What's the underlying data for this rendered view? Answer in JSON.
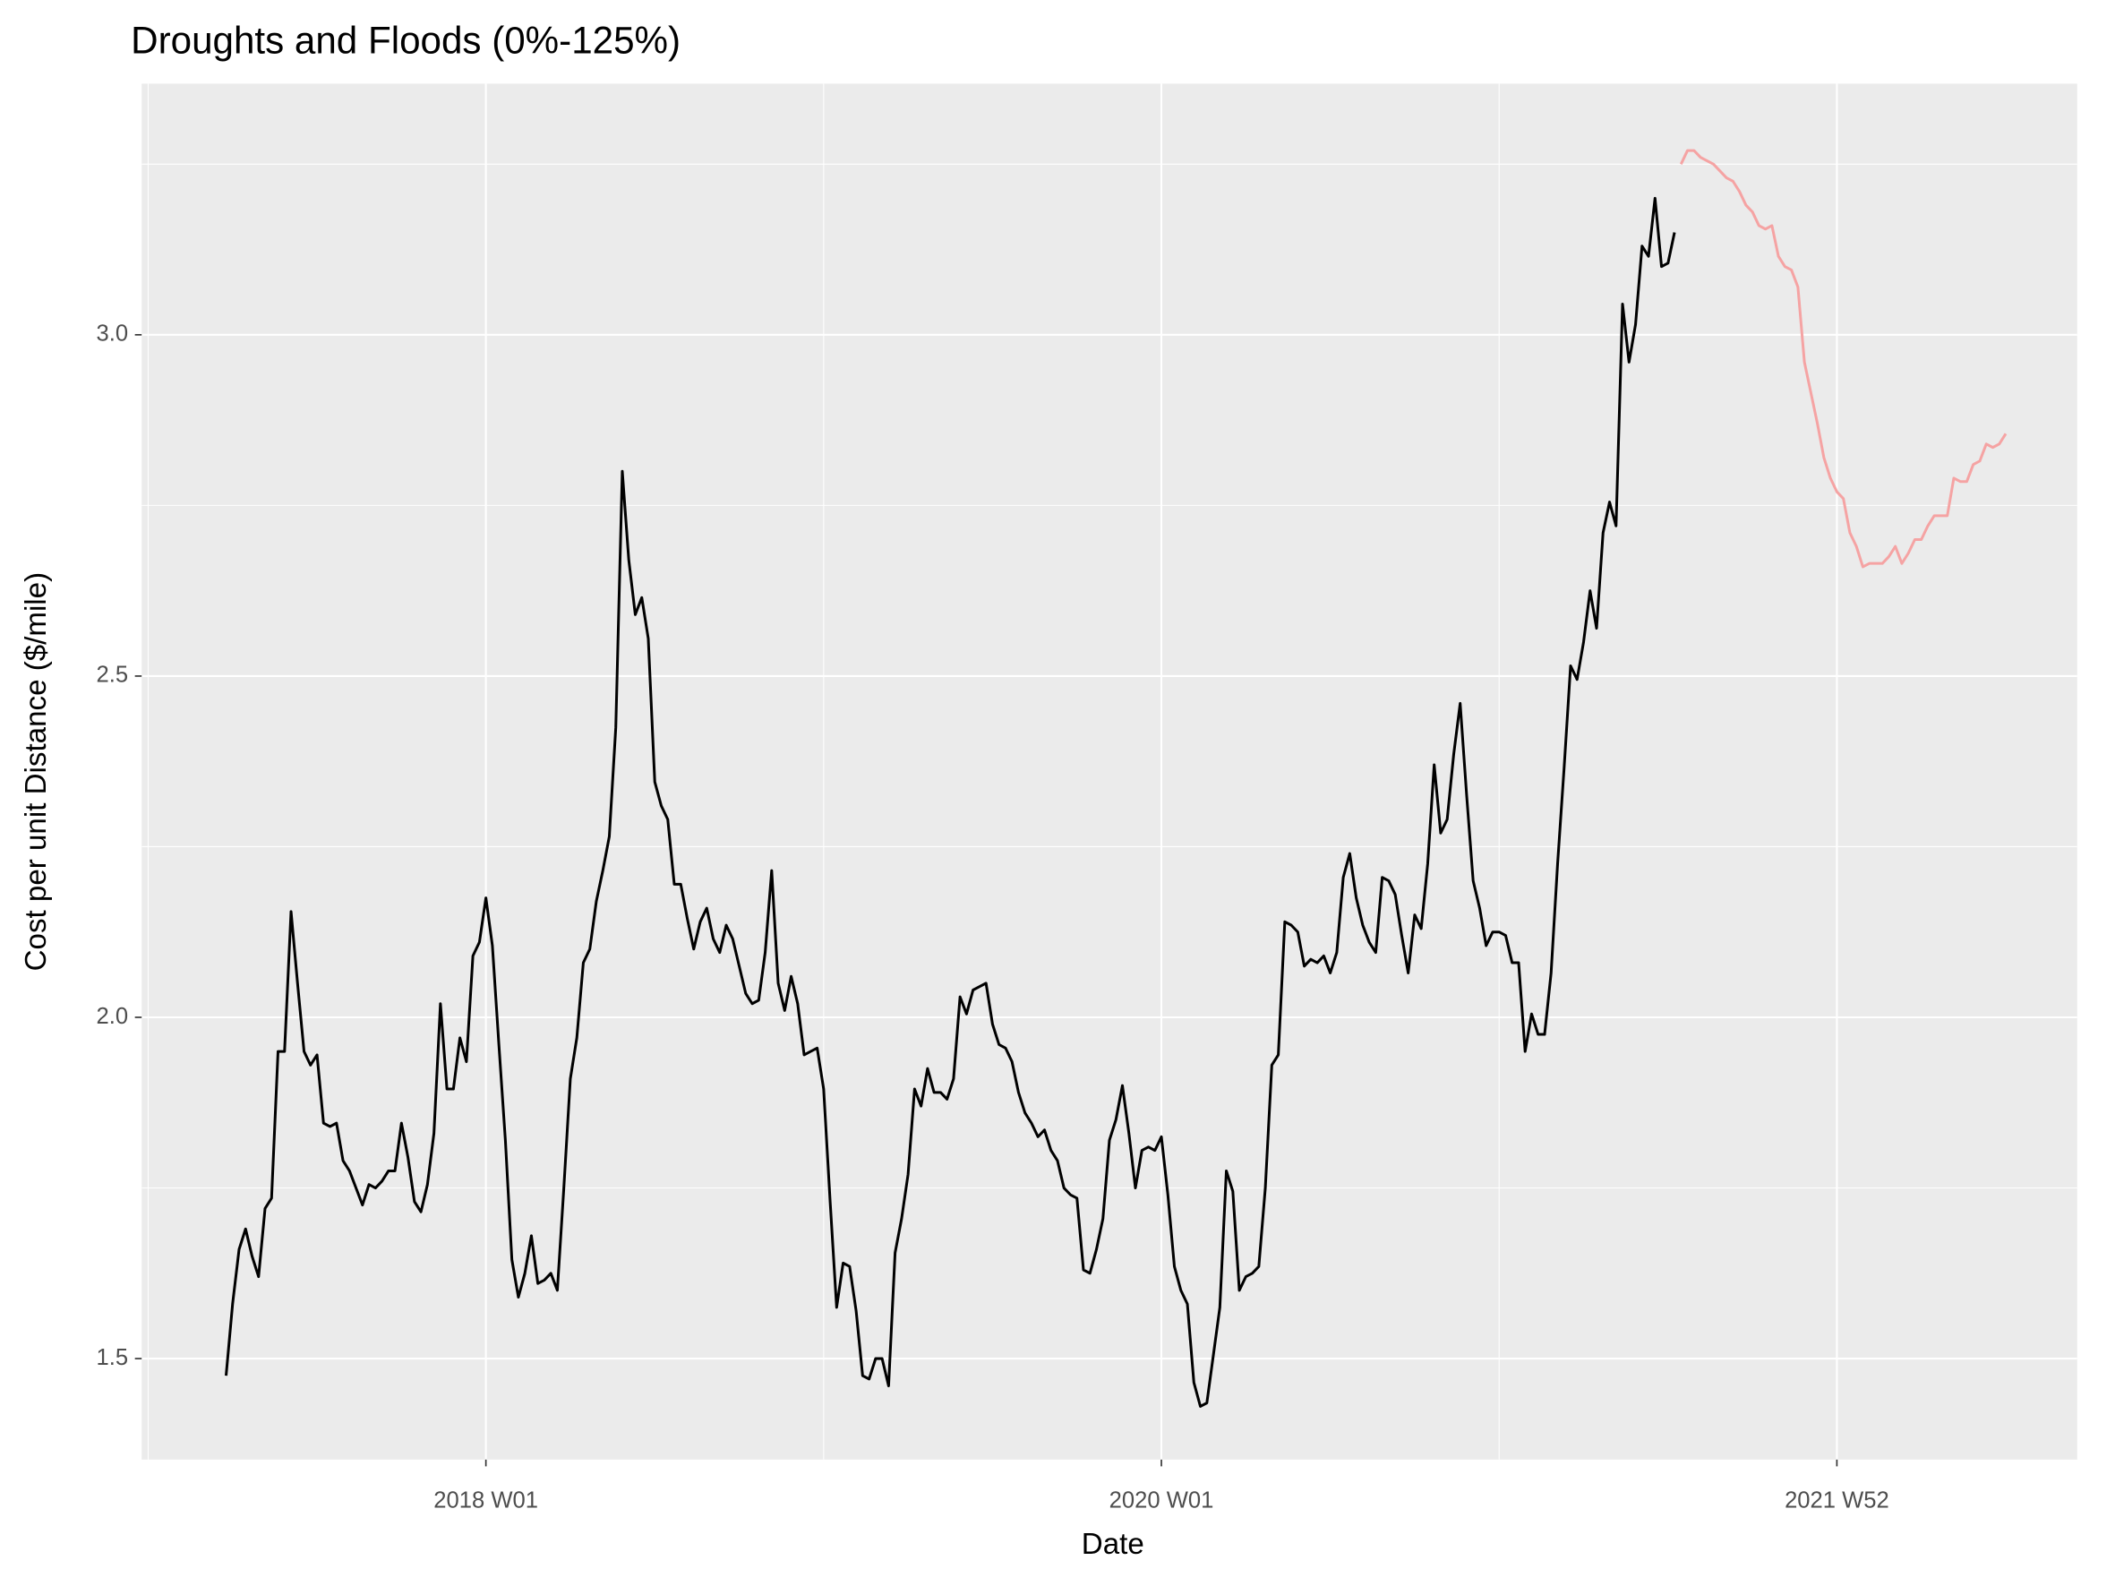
{
  "chart_data": {
    "type": "line",
    "title": "Droughts and Floods (0%-125%)",
    "x_label": "Date",
    "y_label": "Cost per unit Distance ($/mile)",
    "grid": true,
    "xlim": [
      "2016 W52",
      "2022 W37"
    ],
    "xticks": [
      "2018 W01",
      "2020 W01",
      "2021 W52"
    ],
    "ylim": [
      1.352,
      3.368
    ],
    "yticks": [
      1.5,
      {
        "value": 2,
        "label": "2.0"
      },
      2.5,
      {
        "value": 3,
        "label": "3.0"
      }
    ],
    "series": [
      {
        "color": "#000000",
        "x": [
          "2017 W13",
          "2017 W14",
          "2017 W15",
          "2017 W16",
          "2017 W17",
          "2017 W18",
          "2017 W19",
          "2017 W20",
          "2017 W21",
          "2017 W22",
          "2017 W23",
          "2017 W24",
          "2017 W25",
          "2017 W26",
          "2017 W27",
          "2017 W28",
          "2017 W29",
          "2017 W30",
          "2017 W31",
          "2017 W32",
          "2017 W33",
          "2017 W34",
          "2017 W35",
          "2017 W36",
          "2017 W37",
          "2017 W38",
          "2017 W39",
          "2017 W40",
          "2017 W41",
          "2017 W42",
          "2017 W43",
          "2017 W44",
          "2017 W45",
          "2017 W46",
          "2017 W47",
          "2017 W48",
          "2017 W49",
          "2017 W50",
          "2017 W51",
          "2017 W52",
          "2018 W01",
          "2018 W02",
          "2018 W03",
          "2018 W04",
          "2018 W05",
          "2018 W06",
          "2018 W07",
          "2018 W08",
          "2018 W09",
          "2018 W10",
          "2018 W11",
          "2018 W12",
          "2018 W13",
          "2018 W14",
          "2018 W15",
          "2018 W16",
          "2018 W17",
          "2018 W18",
          "2018 W19",
          "2018 W20",
          "2018 W21",
          "2018 W22",
          "2018 W23",
          "2018 W24",
          "2018 W25",
          "2018 W26",
          "2018 W27",
          "2018 W28",
          "2018 W29",
          "2018 W30",
          "2018 W31",
          "2018 W32",
          "2018 W33",
          "2018 W34",
          "2018 W35",
          "2018 W36",
          "2018 W37",
          "2018 W38",
          "2018 W39",
          "2018 W40",
          "2018 W41",
          "2018 W42",
          "2018 W43",
          "2018 W44",
          "2018 W45",
          "2018 W46",
          "2018 W47",
          "2018 W48",
          "2018 W49",
          "2018 W50",
          "2018 W51",
          "2018 W52",
          "2019 W01",
          "2019 W02",
          "2019 W03",
          "2019 W04",
          "2019 W05",
          "2019 W06",
          "2019 W07",
          "2019 W08",
          "2019 W09",
          "2019 W10",
          "2019 W11",
          "2019 W12",
          "2019 W13",
          "2019 W14",
          "2019 W15",
          "2019 W16",
          "2019 W17",
          "2019 W18",
          "2019 W19",
          "2019 W20",
          "2019 W21",
          "2019 W22",
          "2019 W23",
          "2019 W24",
          "2019 W25",
          "2019 W26",
          "2019 W27",
          "2019 W28",
          "2019 W29",
          "2019 W30",
          "2019 W31",
          "2019 W32",
          "2019 W33",
          "2019 W34",
          "2019 W35",
          "2019 W36",
          "2019 W37",
          "2019 W38",
          "2019 W39",
          "2019 W40",
          "2019 W41",
          "2019 W42",
          "2019 W43",
          "2019 W44",
          "2019 W45",
          "2019 W46",
          "2019 W47",
          "2019 W48",
          "2019 W49",
          "2019 W50",
          "2019 W51",
          "2019 W52",
          "2020 W01",
          "2020 W02",
          "2020 W03",
          "2020 W04",
          "2020 W05",
          "2020 W06",
          "2020 W07",
          "2020 W08",
          "2020 W09",
          "2020 W10",
          "2020 W11",
          "2020 W12",
          "2020 W13",
          "2020 W14",
          "2020 W15",
          "2020 W16",
          "2020 W17",
          "2020 W18",
          "2020 W19",
          "2020 W20",
          "2020 W21",
          "2020 W22",
          "2020 W23",
          "2020 W24",
          "2020 W25",
          "2020 W26",
          "2020 W27",
          "2020 W28",
          "2020 W29",
          "2020 W30",
          "2020 W31",
          "2020 W32",
          "2020 W33",
          "2020 W34",
          "2020 W35",
          "2020 W36",
          "2020 W37",
          "2020 W38",
          "2020 W39",
          "2020 W40",
          "2020 W41",
          "2020 W42",
          "2020 W43",
          "2020 W44",
          "2020 W45",
          "2020 W46",
          "2020 W47",
          "2020 W48",
          "2020 W49",
          "2020 W50",
          "2020 W51",
          "2020 W52",
          "2020 W53",
          "2021 W01",
          "2021 W02",
          "2021 W03",
          "2021 W04",
          "2021 W05",
          "2021 W06",
          "2021 W07",
          "2021 W08",
          "2021 W09",
          "2021 W10",
          "2021 W11",
          "2021 W12",
          "2021 W13",
          "2021 W14",
          "2021 W15",
          "2021 W16",
          "2021 W17",
          "2021 W18",
          "2021 W19",
          "2021 W20",
          "2021 W21",
          "2021 W22",
          "2021 W23",
          "2021 W24",
          "2021 W25",
          "2021 W26",
          "2021 W27"
        ],
        "values": [
          1.475,
          1.58,
          1.66,
          1.69,
          1.65,
          1.62,
          1.72,
          1.735,
          1.95,
          1.95,
          2.155,
          2.05,
          1.95,
          1.93,
          1.945,
          1.845,
          1.84,
          1.845,
          1.79,
          1.775,
          1.75,
          1.725,
          1.755,
          1.75,
          1.76,
          1.775,
          1.775,
          1.845,
          1.795,
          1.73,
          1.715,
          1.755,
          1.83,
          2.02,
          1.895,
          1.895,
          1.97,
          1.935,
          2.09,
          2.11,
          2.175,
          2.105,
          1.96,
          1.82,
          1.645,
          1.59,
          1.625,
          1.68,
          1.61,
          1.615,
          1.625,
          1.6,
          1.75,
          1.91,
          1.97,
          2.08,
          2.1,
          2.17,
          2.215,
          2.265,
          2.425,
          2.8,
          2.67,
          2.59,
          2.615,
          2.555,
          2.345,
          2.31,
          2.29,
          2.195,
          2.195,
          2.145,
          2.1,
          2.14,
          2.16,
          2.115,
          2.095,
          2.135,
          2.115,
          2.075,
          2.035,
          2.02,
          2.025,
          2.095,
          2.215,
          2.05,
          2.01,
          2.06,
          2.02,
          1.945,
          1.95,
          1.955,
          1.895,
          1.73,
          1.575,
          1.64,
          1.635,
          1.57,
          1.475,
          1.47,
          1.5,
          1.5,
          1.46,
          1.655,
          1.705,
          1.77,
          1.895,
          1.87,
          1.925,
          1.89,
          1.89,
          1.88,
          1.91,
          2.03,
          2.005,
          2.04,
          2.045,
          2.05,
          1.99,
          1.96,
          1.955,
          1.935,
          1.89,
          1.86,
          1.845,
          1.825,
          1.835,
          1.805,
          1.79,
          1.75,
          1.74,
          1.735,
          1.63,
          1.625,
          1.66,
          1.705,
          1.82,
          1.85,
          1.9,
          1.83,
          1.75,
          1.805,
          1.81,
          1.805,
          1.825,
          1.74,
          1.635,
          1.6,
          1.58,
          1.465,
          1.43,
          1.435,
          1.505,
          1.575,
          1.775,
          1.745,
          1.6,
          1.62,
          1.625,
          1.635,
          1.75,
          1.93,
          1.945,
          2.14,
          2.135,
          2.125,
          2.075,
          2.085,
          2.08,
          2.09,
          2.065,
          2.095,
          2.205,
          2.24,
          2.175,
          2.135,
          2.11,
          2.095,
          2.205,
          2.2,
          2.18,
          2.12,
          2.065,
          2.15,
          2.13,
          2.225,
          2.37,
          2.27,
          2.29,
          2.385,
          2.46,
          2.325,
          2.2,
          2.16,
          2.105,
          2.125,
          2.125,
          2.12,
          2.08,
          2.08,
          1.95,
          2.005,
          1.975,
          1.975,
          2.065,
          2.225,
          2.365,
          2.515,
          2.495,
          2.55,
          2.625,
          2.57,
          2.71,
          2.755,
          2.72,
          3.045,
          2.96,
          3.015,
          3.13,
          3.115,
          3.2,
          3.1,
          3.105,
          3.15
        ]
      },
      {
        "color": "#f5a3a3",
        "x": [
          "2021 W28",
          "2021 W29",
          "2021 W30",
          "2021 W31",
          "2021 W32",
          "2021 W33",
          "2021 W34",
          "2021 W35",
          "2021 W36",
          "2021 W37",
          "2021 W38",
          "2021 W39",
          "2021 W40",
          "2021 W41",
          "2021 W42",
          "2021 W43",
          "2021 W44",
          "2021 W45",
          "2021 W46",
          "2021 W47",
          "2021 W48",
          "2021 W49",
          "2021 W50",
          "2021 W51",
          "2021 W52",
          "2022 W01",
          "2022 W02",
          "2022 W03",
          "2022 W04",
          "2022 W05",
          "2022 W06",
          "2022 W07",
          "2022 W08",
          "2022 W09",
          "2022 W10",
          "2022 W11",
          "2022 W12",
          "2022 W13",
          "2022 W14",
          "2022 W15",
          "2022 W16",
          "2022 W17",
          "2022 W18",
          "2022 W19",
          "2022 W20",
          "2022 W21",
          "2022 W22",
          "2022 W23",
          "2022 W24",
          "2022 W25",
          "2022 W26"
        ],
        "values": [
          3.25,
          3.27,
          3.27,
          3.26,
          3.255,
          3.25,
          3.24,
          3.23,
          3.225,
          3.21,
          3.19,
          3.18,
          3.16,
          3.155,
          3.16,
          3.115,
          3.1,
          3.095,
          3.07,
          2.96,
          2.915,
          2.87,
          2.82,
          2.79,
          2.77,
          2.76,
          2.71,
          2.69,
          2.66,
          2.665,
          2.665,
          2.665,
          2.675,
          2.69,
          2.665,
          2.68,
          2.7,
          2.7,
          2.72,
          2.735,
          2.735,
          2.735,
          2.79,
          2.785,
          2.785,
          2.81,
          2.815,
          2.84,
          2.835,
          2.84,
          2.855
        ]
      }
    ]
  }
}
